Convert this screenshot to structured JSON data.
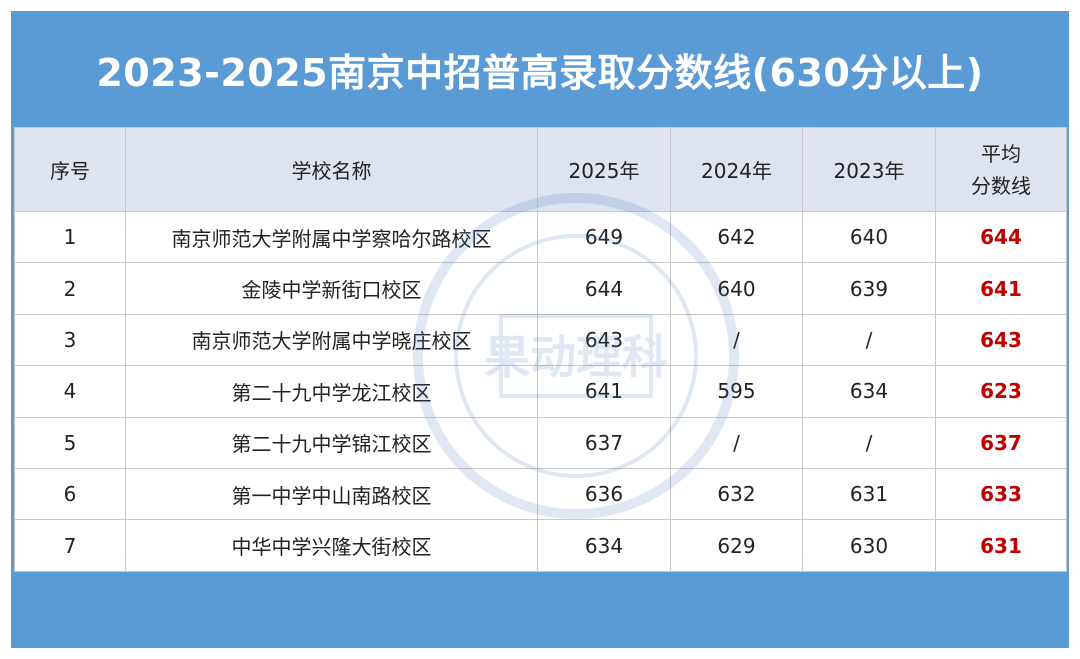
{
  "title": "2023-2025南京中招普高录取分数线(630分以上)",
  "table": {
    "headers": {
      "index": "序号",
      "school": "学校名称",
      "y2025": "2025年",
      "y2024": "2024年",
      "y2023": "2023年",
      "avg_line1": "平均",
      "avg_line2": "分数线"
    },
    "rows": [
      {
        "index": "1",
        "school": "南京师范大学附属中学察哈尔路校区",
        "y2025": "649",
        "y2024": "642",
        "y2023": "640",
        "avg": "644"
      },
      {
        "index": "2",
        "school": "金陵中学新街口校区",
        "y2025": "644",
        "y2024": "640",
        "y2023": "639",
        "avg": "641"
      },
      {
        "index": "3",
        "school": "南京师范大学附属中学晓庄校区",
        "y2025": "643",
        "y2024": "/",
        "y2023": "/",
        "avg": "643"
      },
      {
        "index": "4",
        "school": "第二十九中学龙江校区",
        "y2025": "641",
        "y2024": "595",
        "y2023": "634",
        "avg": "623"
      },
      {
        "index": "5",
        "school": "第二十九中学锦江校区",
        "y2025": "637",
        "y2024": "/",
        "y2023": "/",
        "avg": "637"
      },
      {
        "index": "6",
        "school": "第一中学中山南路校区",
        "y2025": "636",
        "y2024": "632",
        "y2023": "631",
        "avg": "633"
      },
      {
        "index": "7",
        "school": "中华中学兴隆大街校区",
        "y2025": "634",
        "y2024": "629",
        "y2023": "630",
        "avg": "631"
      }
    ]
  },
  "watermark": {
    "text": "果动理科"
  },
  "colors": {
    "frame": "#5b9bd5",
    "header_bg": "#dde3ef",
    "avg_text": "#c00000",
    "title_text": "#ffffff"
  }
}
